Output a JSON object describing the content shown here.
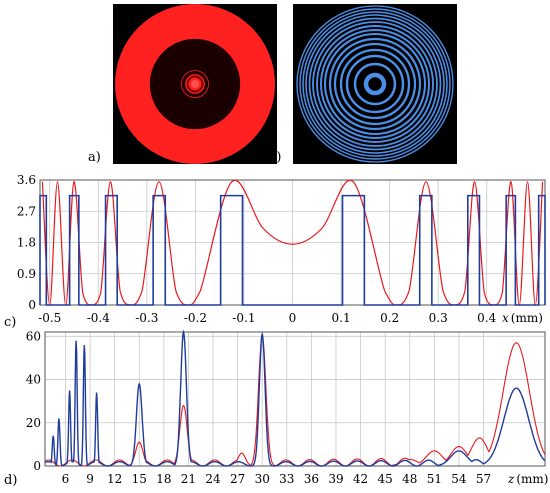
{
  "panels": {
    "a": {
      "label": "a)",
      "ring_color": "#ff2020",
      "background": "#000000"
    },
    "b": {
      "label": "b)",
      "ring_color": "#4a90e8",
      "background": "#000000"
    },
    "c": {
      "label": "c)"
    },
    "d": {
      "label": "d)"
    }
  },
  "colors": {
    "red": "#e8191c",
    "blue": "#1f3c9c",
    "grid": "#c8c8c8"
  },
  "chart_data": [
    {
      "id": "c",
      "type": "line",
      "title": "",
      "xlabel_var": "x",
      "xlabel_unit": "(mm)",
      "ylabel": "",
      "xlim": [
        -0.52,
        0.52
      ],
      "ylim": [
        0,
        3.6
      ],
      "x_ticks": [
        "-0.5",
        "-0.4",
        "-0.3",
        "-0.2",
        "-0.1",
        "0",
        "0.1",
        "0.2",
        "0.3",
        "0.4"
      ],
      "x_tick_values": [
        -0.5,
        -0.4,
        -0.3,
        -0.2,
        -0.1,
        0,
        0.1,
        0.2,
        0.3,
        0.4
      ],
      "y_ticks": [
        "0",
        "0.9",
        "1.8",
        "2.7",
        "3.6"
      ],
      "y_tick_values": [
        0,
        0.9,
        1.8,
        2.7,
        3.6
      ],
      "grid": true,
      "series": [
        {
          "color": "red",
          "note": "smooth intensity curve",
          "x": [
            0,
            0.06,
            0.125,
            0.19,
            0.215,
            0.24,
            0.275,
            0.31,
            0.333,
            0.355,
            0.375,
            0.395,
            0.414,
            0.432,
            0.45,
            0.467,
            0.484,
            0.5,
            0.515
          ],
          "y": [
            1.75,
            2.2,
            3.55,
            0.4,
            0.0,
            0.4,
            3.55,
            0.4,
            0.0,
            0.4,
            3.55,
            0.35,
            0.0,
            0.35,
            3.55,
            0.0,
            3.55,
            0.0,
            3.55
          ]
        },
        {
          "color": "blue",
          "note": "binary mask (ring zones)",
          "levels": [
            0,
            3.15
          ],
          "high_intervals": [
            [
              0.103,
              0.148
            ],
            [
              0.262,
              0.287
            ],
            [
              0.361,
              0.385
            ],
            [
              0.44,
              0.459
            ],
            [
              0.507,
              0.52
            ]
          ]
        }
      ]
    },
    {
      "id": "d",
      "type": "line",
      "title": "",
      "xlabel_var": "z",
      "xlabel_unit": "(mm)",
      "ylabel": "",
      "xlim": [
        3.5,
        64.5
      ],
      "ylim": [
        0,
        62
      ],
      "x_ticks": [
        "6",
        "9",
        "12",
        "15",
        "18",
        "21",
        "24",
        "27",
        "30",
        "33",
        "36",
        "39",
        "42",
        "45",
        "48",
        "51",
        "54",
        "57",
        "z"
      ],
      "x_tick_values": [
        6,
        9,
        12,
        15,
        18,
        21,
        24,
        27,
        30,
        33,
        36,
        39,
        42,
        45,
        48,
        51,
        54,
        57
      ],
      "y_ticks": [
        "0",
        "20",
        "40",
        "60"
      ],
      "y_tick_values": [
        0,
        20,
        40,
        60
      ],
      "grid": true,
      "series": [
        {
          "color": "red",
          "peaks": [
            [
              15,
              11
            ],
            [
              20.4,
              28
            ],
            [
              27.5,
              6
            ],
            [
              30,
              60
            ],
            [
              48,
              3
            ],
            [
              51,
              7
            ],
            [
              54,
              9
            ],
            [
              56.5,
              13
            ],
            [
              61,
              57
            ]
          ]
        },
        {
          "color": "blue",
          "peaks": [
            [
              4.5,
              14
            ],
            [
              5.2,
              22
            ],
            [
              6.5,
              35
            ],
            [
              7.3,
              58
            ],
            [
              8.3,
              56
            ],
            [
              9.8,
              34
            ],
            [
              15,
              38
            ],
            [
              20.4,
              62
            ],
            [
              30,
              61
            ],
            [
              54,
              7
            ],
            [
              61,
              36
            ]
          ]
        }
      ]
    }
  ]
}
